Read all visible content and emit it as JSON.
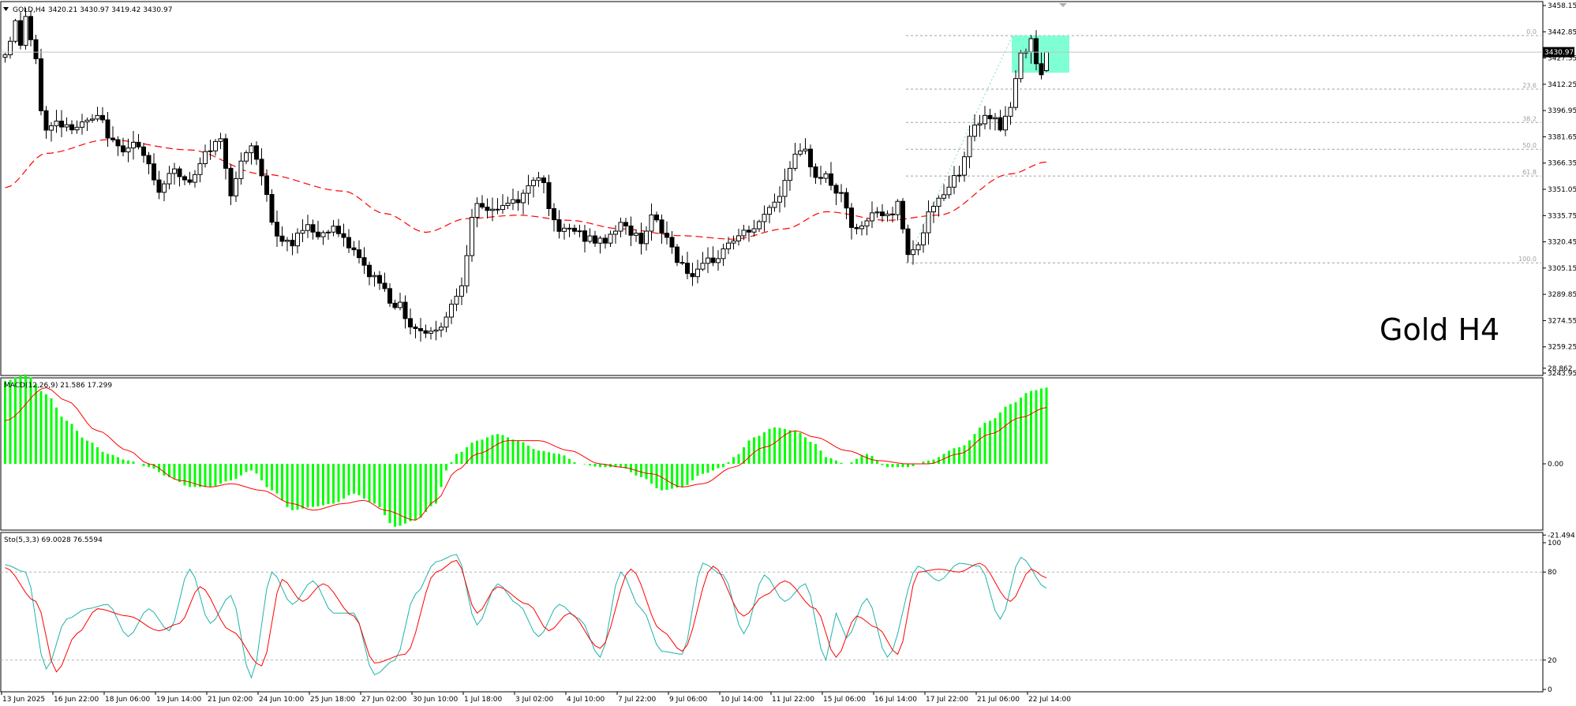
{
  "colors": {
    "background": "#ffffff",
    "frame": "#000000",
    "candle_up_fill": "#ffffff",
    "candle_down_fill": "#000000",
    "ma_line": "#ff0000",
    "fib_line": "#a0a0a0",
    "fib_box": "#7fffd4",
    "fib_trend": "#7fd8d0",
    "macd_hist": "#00ff00",
    "macd_signal": "#ff0000",
    "stoch_main": "#20b2aa",
    "stoch_signal": "#ff0000",
    "grid_level": "#b4b4b4"
  },
  "main_panel": {
    "header_icon": "triangle-down-icon",
    "header_label": "GOLD,H4",
    "header_ohlc": "3420.21 3430.97 3419.42 3430.97",
    "watermark": "Gold H4",
    "current_price_label": "3430.97"
  },
  "macd_panel": {
    "header_label": "MACD(12,26,9) 21.586 17.299"
  },
  "stoch_panel": {
    "header_label": "Sto(5,3,3) 69.0028 76.5594"
  },
  "chart_data": [
    {
      "type": "candlestick",
      "symbol": "GOLD",
      "timeframe": "H4",
      "ylim": [
        3243.95,
        3458.15
      ],
      "y_ticks": [
        "3458.15",
        "3442.85",
        "3427.55",
        "3412.25",
        "3396.95",
        "3381.65",
        "3366.35",
        "3351.05",
        "3335.75",
        "3320.45",
        "3305.15",
        "3289.85",
        "3274.55",
        "3259.25",
        "3243.95"
      ],
      "x_ticks": [
        "13 Jun 2025",
        "16 Jun 22:00",
        "18 Jun 06:00",
        "19 Jun 14:00",
        "21 Jun 02:00",
        "24 Jun 10:00",
        "25 Jun 18:00",
        "27 Jun 02:00",
        "30 Jun 10:00",
        "1 Jul 18:00",
        "3 Jul 02:00",
        "4 Jul 10:00",
        "7 Jul 22:00",
        "9 Jul 06:00",
        "10 Jul 14:00",
        "11 Jul 22:00",
        "15 Jul 06:00",
        "16 Jul 14:00",
        "17 Jul 22:00",
        "21 Jul 06:00",
        "22 Jul 14:00"
      ],
      "current_price": 3430.97,
      "fibonacci": {
        "from": 3308.2,
        "to": 3440.6,
        "levels": [
          {
            "label": "0.0",
            "price": 3440.6
          },
          {
            "label": "23.6",
            "price": 3409.4
          },
          {
            "label": "38.2",
            "price": 3390.0
          },
          {
            "label": "50.0",
            "price": 3374.4
          },
          {
            "label": "61.8",
            "price": 3358.8
          },
          {
            "label": "100.0",
            "price": 3308.2
          }
        ]
      },
      "moving_average_anchors": [
        [
          0,
          3352
        ],
        [
          8,
          3372
        ],
        [
          20,
          3380
        ],
        [
          36,
          3374
        ],
        [
          50,
          3360
        ],
        [
          66,
          3350
        ],
        [
          74,
          3337
        ],
        [
          82,
          3326
        ],
        [
          90,
          3334
        ],
        [
          100,
          3336
        ],
        [
          110,
          3333
        ],
        [
          120,
          3328
        ],
        [
          132,
          3324
        ],
        [
          142,
          3322
        ],
        [
          152,
          3328
        ],
        [
          160,
          3338
        ],
        [
          172,
          3333
        ],
        [
          182,
          3336
        ],
        [
          196,
          3360
        ],
        [
          203,
          3367
        ]
      ],
      "candles": []
    },
    {
      "type": "macd",
      "params": "12,26,9",
      "values": {
        "main": 21.586,
        "signal": 17.299
      },
      "ylim": [
        -21.494,
        28.862
      ],
      "y_ticks": [
        "28.862",
        "0.00",
        "-21.494"
      ],
      "histogram_anchors": [
        [
          0,
          25
        ],
        [
          4,
          27
        ],
        [
          8,
          21
        ],
        [
          12,
          13
        ],
        [
          16,
          7
        ],
        [
          20,
          3
        ],
        [
          24,
          1
        ],
        [
          28,
          -1
        ],
        [
          32,
          -4
        ],
        [
          36,
          -7
        ],
        [
          40,
          -7
        ],
        [
          44,
          -5
        ],
        [
          48,
          -2
        ],
        [
          52,
          -8
        ],
        [
          56,
          -14
        ],
        [
          60,
          -13
        ],
        [
          64,
          -12
        ],
        [
          68,
          -9
        ],
        [
          72,
          -12
        ],
        [
          76,
          -19
        ],
        [
          80,
          -17
        ],
        [
          84,
          -12
        ],
        [
          86,
          -2
        ],
        [
          88,
          3
        ],
        [
          92,
          7
        ],
        [
          96,
          9
        ],
        [
          100,
          7
        ],
        [
          104,
          4
        ],
        [
          108,
          3
        ],
        [
          112,
          0
        ],
        [
          116,
          -1
        ],
        [
          120,
          -1
        ],
        [
          124,
          -4
        ],
        [
          128,
          -8
        ],
        [
          132,
          -7
        ],
        [
          136,
          -3
        ],
        [
          140,
          -1
        ],
        [
          142,
          2
        ],
        [
          146,
          8
        ],
        [
          150,
          11
        ],
        [
          154,
          10
        ],
        [
          158,
          6
        ],
        [
          160,
          2
        ],
        [
          164,
          0
        ],
        [
          168,
          3
        ],
        [
          172,
          -1
        ],
        [
          176,
          -1
        ],
        [
          180,
          1
        ],
        [
          186,
          5
        ],
        [
          192,
          13
        ],
        [
          196,
          18
        ],
        [
          200,
          22
        ],
        [
          203,
          23
        ]
      ],
      "signal_anchors": [
        [
          0,
          13
        ],
        [
          8,
          23
        ],
        [
          12,
          19
        ],
        [
          18,
          10
        ],
        [
          24,
          4
        ],
        [
          28,
          0
        ],
        [
          34,
          -5
        ],
        [
          40,
          -7
        ],
        [
          44,
          -6
        ],
        [
          50,
          -8
        ],
        [
          56,
          -12
        ],
        [
          60,
          -14
        ],
        [
          66,
          -12
        ],
        [
          70,
          -11
        ],
        [
          74,
          -14
        ],
        [
          80,
          -17
        ],
        [
          84,
          -11
        ],
        [
          88,
          -2
        ],
        [
          92,
          3
        ],
        [
          98,
          7
        ],
        [
          104,
          7
        ],
        [
          110,
          4
        ],
        [
          116,
          0
        ],
        [
          120,
          -1
        ],
        [
          126,
          -3
        ],
        [
          132,
          -7
        ],
        [
          136,
          -6
        ],
        [
          142,
          -1
        ],
        [
          148,
          5
        ],
        [
          154,
          10
        ],
        [
          158,
          8
        ],
        [
          164,
          4
        ],
        [
          170,
          1
        ],
        [
          176,
          0
        ],
        [
          180,
          0
        ],
        [
          186,
          3
        ],
        [
          192,
          9
        ],
        [
          198,
          14
        ],
        [
          203,
          17
        ]
      ]
    },
    {
      "type": "line",
      "name": "Sto",
      "params": "5,3,3",
      "values": {
        "main": 69.0028,
        "signal": 76.5594
      },
      "ylim": [
        0,
        100
      ],
      "y_ticks": [
        "100",
        "80",
        "20",
        "0"
      ],
      "levels": [
        80,
        20
      ],
      "main_anchors": [
        [
          0,
          85
        ],
        [
          4,
          80
        ],
        [
          8,
          14
        ],
        [
          12,
          48
        ],
        [
          16,
          55
        ],
        [
          20,
          58
        ],
        [
          24,
          36
        ],
        [
          28,
          55
        ],
        [
          32,
          40
        ],
        [
          36,
          82
        ],
        [
          40,
          45
        ],
        [
          44,
          64
        ],
        [
          48,
          8
        ],
        [
          52,
          80
        ],
        [
          56,
          58
        ],
        [
          60,
          74
        ],
        [
          64,
          52
        ],
        [
          68,
          52
        ],
        [
          72,
          10
        ],
        [
          76,
          20
        ],
        [
          80,
          65
        ],
        [
          84,
          87
        ],
        [
          88,
          92
        ],
        [
          92,
          44
        ],
        [
          96,
          72
        ],
        [
          100,
          58
        ],
        [
          104,
          36
        ],
        [
          108,
          58
        ],
        [
          112,
          48
        ],
        [
          116,
          22
        ],
        [
          120,
          80
        ],
        [
          124,
          55
        ],
        [
          128,
          26
        ],
        [
          132,
          24
        ],
        [
          136,
          86
        ],
        [
          140,
          78
        ],
        [
          144,
          38
        ],
        [
          148,
          78
        ],
        [
          152,
          60
        ],
        [
          156,
          72
        ],
        [
          160,
          20
        ],
        [
          162,
          52
        ],
        [
          164,
          35
        ],
        [
          168,
          62
        ],
        [
          172,
          22
        ],
        [
          178,
          84
        ],
        [
          182,
          74
        ],
        [
          186,
          86
        ],
        [
          190,
          84
        ],
        [
          194,
          48
        ],
        [
          198,
          90
        ],
        [
          203,
          69
        ]
      ],
      "signal_anchors": [
        [
          0,
          83
        ],
        [
          6,
          60
        ],
        [
          10,
          12
        ],
        [
          14,
          38
        ],
        [
          18,
          55
        ],
        [
          24,
          50
        ],
        [
          30,
          40
        ],
        [
          34,
          45
        ],
        [
          38,
          70
        ],
        [
          44,
          40
        ],
        [
          50,
          16
        ],
        [
          54,
          75
        ],
        [
          58,
          60
        ],
        [
          62,
          72
        ],
        [
          68,
          50
        ],
        [
          72,
          18
        ],
        [
          78,
          24
        ],
        [
          84,
          80
        ],
        [
          88,
          88
        ],
        [
          92,
          52
        ],
        [
          96,
          70
        ],
        [
          102,
          58
        ],
        [
          106,
          40
        ],
        [
          110,
          52
        ],
        [
          116,
          28
        ],
        [
          122,
          82
        ],
        [
          128,
          40
        ],
        [
          132,
          26
        ],
        [
          138,
          84
        ],
        [
          144,
          50
        ],
        [
          148,
          64
        ],
        [
          152,
          74
        ],
        [
          158,
          55
        ],
        [
          162,
          22
        ],
        [
          166,
          50
        ],
        [
          170,
          42
        ],
        [
          174,
          24
        ],
        [
          178,
          80
        ],
        [
          182,
          82
        ],
        [
          186,
          80
        ],
        [
          190,
          86
        ],
        [
          196,
          60
        ],
        [
          200,
          82
        ],
        [
          203,
          76
        ]
      ]
    }
  ]
}
